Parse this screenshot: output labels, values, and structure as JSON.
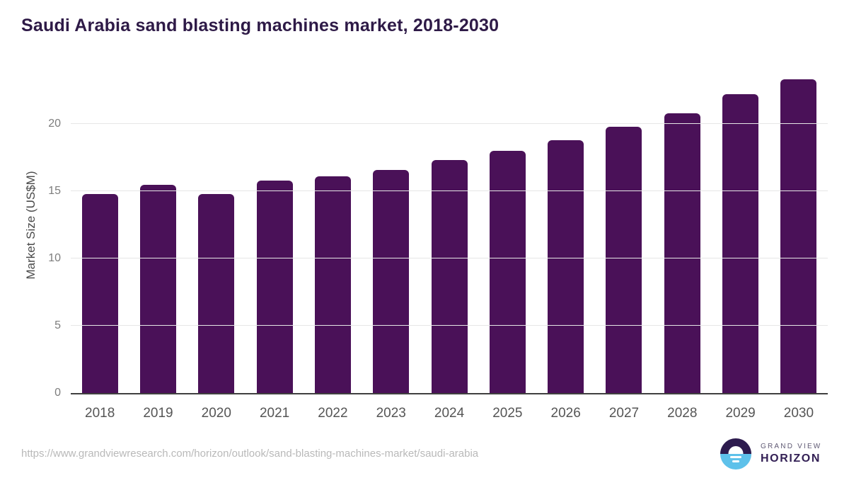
{
  "title": "Saudi Arabia sand blasting machines market, 2018-2030",
  "chart_data": {
    "type": "bar",
    "title": "Saudi Arabia sand blasting machines market, 2018-2030",
    "categories": [
      "2018",
      "2019",
      "2020",
      "2021",
      "2022",
      "2023",
      "2024",
      "2025",
      "2026",
      "2027",
      "2028",
      "2029",
      "2030"
    ],
    "values": [
      14.8,
      15.5,
      14.8,
      15.8,
      16.1,
      16.6,
      17.3,
      18.0,
      18.8,
      19.8,
      20.8,
      22.2,
      23.3
    ],
    "xlabel": "",
    "ylabel": "Market Size (US$M)",
    "ylim": [
      0,
      25
    ],
    "yticks": [
      0,
      5,
      10,
      15,
      20
    ],
    "grid": true,
    "legend": false,
    "bar_color": "#4a1158"
  },
  "footer": {
    "source_url": "https://www.grandviewresearch.com/horizon/outlook/sand-blasting-machines-market/saudi-arabia",
    "logo": {
      "line1": "GRAND VIEW",
      "line2": "HORIZON"
    }
  },
  "colors": {
    "title_text": "#2e1a47",
    "bar": "#4a1158",
    "gridline": "#e6e6e6",
    "baseline": "#404040",
    "tick_text": "#7d7d7d",
    "category_text": "#555555",
    "url_text": "#b9b9b9",
    "logo_purple": "#2d1b4e",
    "logo_blue": "#5ec1ea"
  }
}
